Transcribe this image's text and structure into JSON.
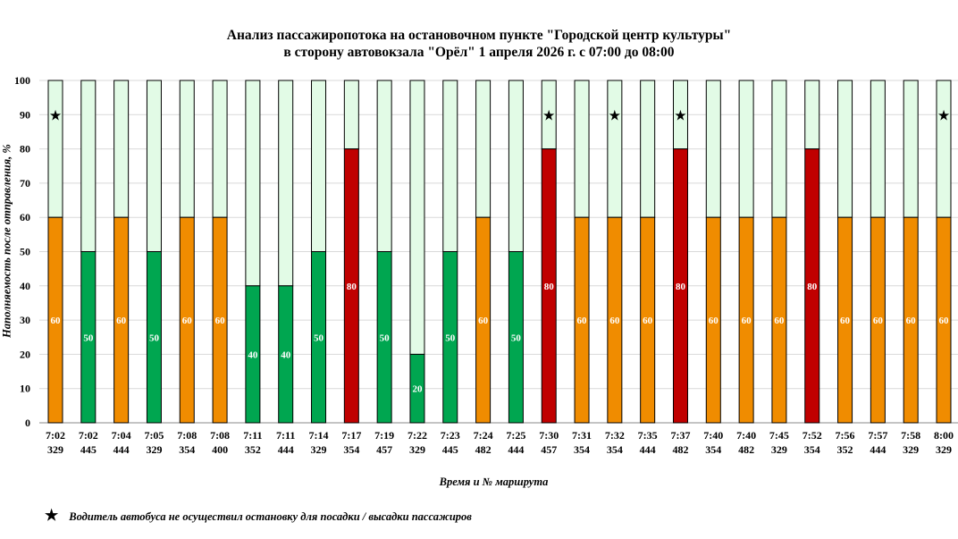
{
  "chart_data": {
    "type": "bar",
    "stacked": true,
    "title": "Анализ пассажиропотока на остановочном пункте \"Городской центр культуры\"",
    "subtitle": "в сторону автовокзала \"Орёл\" 1 апреля 2026 г. с 07:00 до 08:00",
    "xlabel": "Время и № маршрута",
    "ylabel": "Наполняемость после отправления, %",
    "ylim": [
      0,
      100
    ],
    "yticks": [
      0,
      10,
      20,
      30,
      40,
      50,
      60,
      70,
      80,
      90,
      100
    ],
    "grid": true,
    "categories": [
      {
        "time": "7:02",
        "route": "329"
      },
      {
        "time": "7:02",
        "route": "445"
      },
      {
        "time": "7:04",
        "route": "444"
      },
      {
        "time": "7:05",
        "route": "329"
      },
      {
        "time": "7:08",
        "route": "354"
      },
      {
        "time": "7:08",
        "route": "400"
      },
      {
        "time": "7:11",
        "route": "352"
      },
      {
        "time": "7:11",
        "route": "444"
      },
      {
        "time": "7:14",
        "route": "329"
      },
      {
        "time": "7:17",
        "route": "354"
      },
      {
        "time": "7:19",
        "route": "457"
      },
      {
        "time": "7:22",
        "route": "329"
      },
      {
        "time": "7:23",
        "route": "445"
      },
      {
        "time": "7:24",
        "route": "482"
      },
      {
        "time": "7:25",
        "route": "444"
      },
      {
        "time": "7:30",
        "route": "457"
      },
      {
        "time": "7:31",
        "route": "354"
      },
      {
        "time": "7:32",
        "route": "354"
      },
      {
        "time": "7:35",
        "route": "444"
      },
      {
        "time": "7:37",
        "route": "482"
      },
      {
        "time": "7:40",
        "route": "354"
      },
      {
        "time": "7:40",
        "route": "482"
      },
      {
        "time": "7:45",
        "route": "329"
      },
      {
        "time": "7:52",
        "route": "354"
      },
      {
        "time": "7:56",
        "route": "352"
      },
      {
        "time": "7:57",
        "route": "444"
      },
      {
        "time": "7:58",
        "route": "329"
      },
      {
        "time": "8:00",
        "route": "329"
      }
    ],
    "values": [
      60,
      50,
      60,
      50,
      60,
      60,
      40,
      40,
      50,
      80,
      50,
      20,
      50,
      60,
      50,
      80,
      60,
      60,
      60,
      80,
      60,
      60,
      60,
      80,
      60,
      60,
      60,
      60
    ],
    "skipped_stop": [
      true,
      false,
      false,
      false,
      false,
      false,
      false,
      false,
      false,
      false,
      false,
      false,
      false,
      false,
      false,
      true,
      false,
      true,
      false,
      true,
      false,
      false,
      false,
      false,
      false,
      false,
      false,
      true
    ],
    "colors": {
      "low": "#00A650",
      "medium": "#F08C00",
      "high": "#C00000",
      "remainder": "#E2FBE6",
      "label": "#FFFFFF"
    },
    "legend": {
      "marker": "★",
      "text": "Водитель автобуса не осуществил остановку для посадки / высадки пассажиров"
    }
  }
}
